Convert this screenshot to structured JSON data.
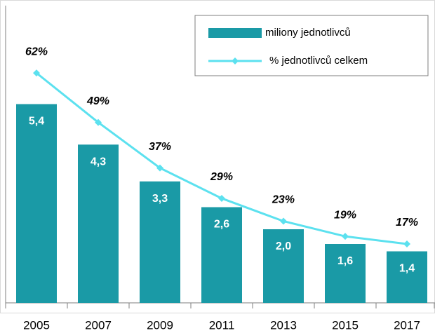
{
  "chart_data": {
    "type": "bar_line",
    "categories": [
      "2005",
      "2007",
      "2009",
      "2011",
      "2013",
      "2015",
      "2017"
    ],
    "series": [
      {
        "name": "miliony jednotlivců",
        "type": "bar",
        "color": "#1a9aa6",
        "values": [
          5.4,
          4.3,
          3.3,
          2.6,
          2.0,
          1.6,
          1.4
        ],
        "value_labels": [
          "5,4",
          "4,3",
          "3,3",
          "2,6",
          "2,0",
          "1,6",
          "1,4"
        ]
      },
      {
        "name": "% jednotlivců celkem",
        "type": "line",
        "axis": "y2",
        "color": "#5ce1ef",
        "values": [
          62,
          49,
          37,
          29,
          23,
          19,
          17
        ],
        "value_labels": [
          "62%",
          "49%",
          "37%",
          "29%",
          "23%",
          "19%",
          "17%"
        ]
      }
    ],
    "ylim": [
      0,
      8
    ],
    "y2lim": [
      1.5,
      79
    ]
  }
}
